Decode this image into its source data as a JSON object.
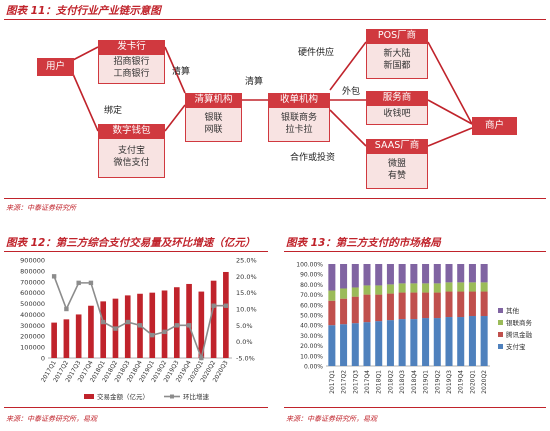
{
  "fig11": {
    "title": "图表 11：支付行业产业链示意图",
    "source": "来源：中泰证券研究所",
    "user_left": "用户",
    "issuer": "发卡行",
    "issuer_sub": [
      "招商银行",
      "工商银行"
    ],
    "wallet": "数字钱包",
    "wallet_sub": [
      "支付宝",
      "微信支付"
    ],
    "clearing": "清算机构",
    "clearing_sub": [
      "银联",
      "网联"
    ],
    "acquirer": "收单机构",
    "acquirer_sub": [
      "银联商务",
      "拉卡拉"
    ],
    "pos": "POS厂商",
    "pos_sub": [
      "新大陆",
      "新国都"
    ],
    "service": "服务商",
    "service_sub": [
      "收钱吧"
    ],
    "saas": "SAAS厂商",
    "saas_sub": [
      "微盟",
      "有赞"
    ],
    "merchant": "商户",
    "edge_clear1": "清算",
    "edge_clear2": "清算",
    "edge_bind": "绑定",
    "edge_hw": "硬件供应",
    "edge_outsource": "外包",
    "edge_coop": "合作或投资"
  },
  "fig12": {
    "title": "图表 12：第三方综合支付交易量及环比增速（亿元）",
    "source": "来源：中泰证券研究所，易观"
  },
  "fig13": {
    "title": "图表 13：第三方支付的市场格局",
    "source": "来源：中泰证券研究所，易观"
  },
  "chart_data": [
    {
      "type": "bar",
      "categories": [
        "2017Q1",
        "2017Q2",
        "2017Q3",
        "2017Q4",
        "2018Q1",
        "2018Q2",
        "2018Q3",
        "2018Q4",
        "2019Q1",
        "2019Q2",
        "2019Q3",
        "2019Q4",
        "2020Q1",
        "2020Q2",
        "2020Q3"
      ],
      "series": [
        {
          "name": "交易金额（亿元）",
          "type": "bar",
          "axis": "left",
          "color": "#c0232b",
          "values": [
            325000,
            355000,
            400000,
            480000,
            520000,
            545000,
            575000,
            590000,
            600000,
            620000,
            650000,
            680000,
            610000,
            710000,
            790000
          ]
        },
        {
          "name": "环比增速",
          "type": "line",
          "axis": "right",
          "color": "#8c8c8c",
          "values": [
            20.0,
            10.0,
            18.0,
            18.0,
            6.0,
            4.0,
            6.0,
            5.0,
            2.0,
            3.0,
            5.0,
            5.0,
            -5.0,
            11.0,
            11.0
          ]
        }
      ],
      "yticks_left": [
        "0",
        "100000",
        "200000",
        "300000",
        "400000",
        "500000",
        "600000",
        "700000",
        "800000",
        "900000"
      ],
      "yticks_right": [
        "-5.0%",
        "0.0%",
        "5.0%",
        "10.0%",
        "15.0%",
        "20.0%",
        "25.0%"
      ],
      "ylim_left": [
        0,
        900000
      ],
      "ylim_right": [
        -5,
        25
      ],
      "legend": "bottom"
    },
    {
      "type": "bar",
      "stacked": true,
      "categories": [
        "2017Q1",
        "2017Q2",
        "2017Q3",
        "2017Q4",
        "2018Q1",
        "2018Q2",
        "2018Q3",
        "2018Q4",
        "2019Q1",
        "2019Q2",
        "2019Q3",
        "2019Q4",
        "2020Q1",
        "2020Q2"
      ],
      "series": [
        {
          "name": "支付宝",
          "color": "#4f81bd",
          "values": [
            40,
            41,
            42,
            43,
            44,
            45,
            46,
            46,
            47,
            47,
            48,
            48,
            49,
            49
          ]
        },
        {
          "name": "腾讯金融",
          "color": "#c0504d",
          "values": [
            24,
            25,
            26,
            27,
            26,
            26,
            26,
            26,
            25,
            25,
            25,
            25,
            24,
            24
          ]
        },
        {
          "name": "银联商务",
          "color": "#9bbb59",
          "values": [
            10,
            10,
            9,
            9,
            9,
            9,
            9,
            9,
            9,
            9,
            9,
            9,
            9,
            9
          ]
        },
        {
          "name": "其他",
          "color": "#8064a2",
          "values": [
            26,
            24,
            23,
            21,
            21,
            20,
            19,
            19,
            19,
            19,
            18,
            18,
            18,
            18
          ]
        }
      ],
      "yticks": [
        "0.00%",
        "10.00%",
        "20.00%",
        "30.00%",
        "40.00%",
        "50.00%",
        "60.00%",
        "70.00%",
        "80.00%",
        "90.00%",
        "100.00%"
      ],
      "ylim": [
        0,
        100
      ],
      "legend": "right"
    }
  ]
}
